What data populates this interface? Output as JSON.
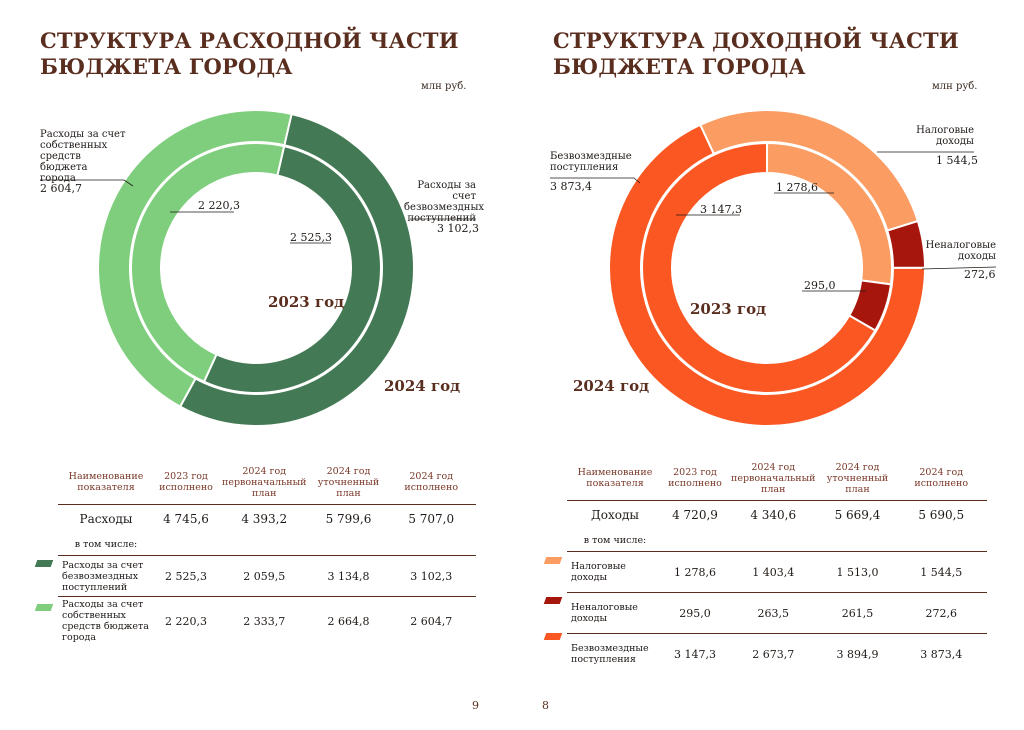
{
  "left": {
    "title_line1": "СТРУКТУРА РАСХОДНОЙ ЧАСТИ",
    "title_line2": "БЮДЖЕТА ГОРОДА",
    "unit": "млн руб.",
    "labels": {
      "own_outer": "Расходы за счет собственных средств бюджета города",
      "own_outer_value": "2 604,7",
      "own_inner_value": "2 220,3",
      "grant_outer": "Расходы за счет безвозмездных поступлений",
      "grant_outer_value": "3 102,3",
      "grant_inner_value": "2 525,3",
      "year_inner": "2023 год",
      "year_outer": "2024 год"
    },
    "colors": {
      "grant": "#437a55",
      "own": "#7fce7d"
    },
    "table": {
      "headers": [
        "Наименование показателя",
        "2023 год исполнено",
        "2024 год первоначальный план",
        "2024 год уточненный план",
        "2024 год исполнено"
      ],
      "total": {
        "name": "Расходы",
        "values": [
          "4 745,6",
          "4 393,2",
          "5 799,6",
          "5 707,0"
        ]
      },
      "sub_label": "в том числе:",
      "rows": [
        {
          "name": "Расходы за счет безвозмездных поступлений",
          "values": [
            "2 525,3",
            "2 059,5",
            "3 134,8",
            "3 102,3"
          ]
        },
        {
          "name": "Расходы за счет собственных средств бюджета города",
          "values": [
            "2 220,3",
            "2 333,7",
            "2 664,8",
            "2 604,7"
          ]
        }
      ]
    },
    "page_number": "9"
  },
  "right": {
    "title_line1": "СТРУКТУРА ДОХОДНОЙ ЧАСТИ",
    "title_line2": "БЮДЖЕТА ГОРОДА",
    "unit": "млн руб.",
    "labels": {
      "tax_outer": "Налоговые доходы",
      "tax_outer_value": "1 544,5",
      "tax_inner_value": "1 278,6",
      "nontax_outer": "Неналоговые доходы",
      "nontax_outer_value": "272,6",
      "nontax_inner_value": "295,0",
      "free_outer": "Безвозмездные поступления",
      "free_outer_value": "3 873,4",
      "free_inner_value": "3 147,3",
      "year_inner": "2023 год",
      "year_outer": "2024 год"
    },
    "colors": {
      "tax": "#fb9c62",
      "nontax": "#a7160d",
      "free": "#fb5722"
    },
    "table": {
      "headers": [
        "Наименование показателя",
        "2023 год исполнено",
        "2024 год первоначальный план",
        "2024 год уточненный план",
        "2024 год исполнено"
      ],
      "total": {
        "name": "Доходы",
        "values": [
          "4 720,9",
          "4 340,6",
          "5 669,4",
          "5 690,5"
        ]
      },
      "sub_label": "в том числе:",
      "rows": [
        {
          "name": "Налоговые доходы",
          "values": [
            "1 278,6",
            "1 403,4",
            "1 513,0",
            "1 544,5"
          ]
        },
        {
          "name": "Неналоговые доходы",
          "values": [
            "295,0",
            "263,5",
            "261,5",
            "272,6"
          ]
        },
        {
          "name": "Безвозмездные поступления",
          "values": [
            "3 147,3",
            "2 673,7",
            "3 894,9",
            "3 873,4"
          ]
        }
      ]
    },
    "page_number": "8"
  },
  "chart_data": [
    {
      "type": "pie",
      "title": "СТРУКТУРА РАСХОДНОЙ ЧАСТИ БЮДЖЕТА ГОРОДА",
      "unit": "млн руб.",
      "categories": [
        "Расходы за счет безвозмездных поступлений",
        "Расходы за счет собственных средств бюджета города"
      ],
      "series": [
        {
          "name": "2023 год",
          "values": [
            2525.3,
            2220.3
          ]
        },
        {
          "name": "2024 год",
          "values": [
            3102.3,
            2604.7
          ]
        }
      ]
    },
    {
      "type": "pie",
      "title": "СТРУКТУРА ДОХОДНОЙ ЧАСТИ БЮДЖЕТА ГОРОДА",
      "unit": "млн руб.",
      "categories": [
        "Налоговые доходы",
        "Неналоговые доходы",
        "Безвозмездные поступления"
      ],
      "series": [
        {
          "name": "2023 год",
          "values": [
            1278.6,
            295.0,
            3147.3
          ]
        },
        {
          "name": "2024 год",
          "values": [
            1544.5,
            272.6,
            3873.4
          ]
        }
      ]
    }
  ]
}
